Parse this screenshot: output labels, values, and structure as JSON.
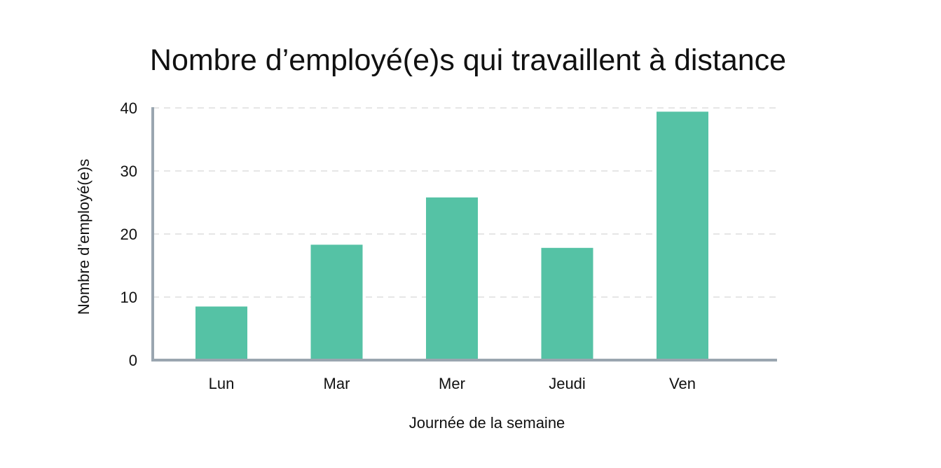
{
  "chart_data": {
    "type": "bar",
    "title": "Nombre d’employé(e)s qui travaillent à distance",
    "xlabel": "Journée de la semaine",
    "ylabel": "Nombre d’employé(e)s",
    "categories": [
      "Lun",
      "Mar",
      "Mer",
      "Jeudi",
      "Ven"
    ],
    "values": [
      8.5,
      18.3,
      25.8,
      17.8,
      39.4
    ],
    "ylim": [
      0,
      40
    ],
    "yticks": [
      "0",
      "10",
      "20",
      "30",
      "40"
    ],
    "grid": "horizontal dashed",
    "bar_color": "#55c2a5",
    "axis_color": "#9aa6b0",
    "grid_color": "#dddddd"
  }
}
